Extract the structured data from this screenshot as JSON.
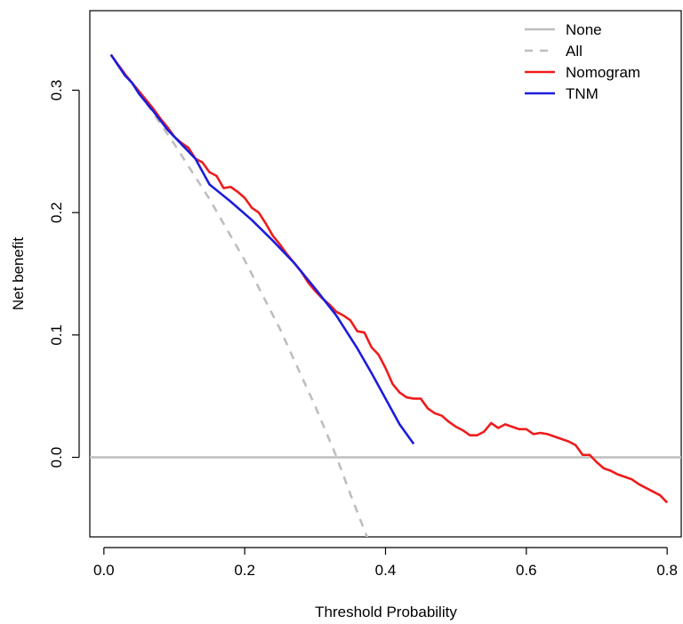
{
  "chart_data": {
    "type": "line",
    "title": "",
    "xlabel": "Threshold Probability",
    "ylabel": "Net benefit",
    "xlim": [
      -0.02,
      0.82
    ],
    "ylim": [
      -0.065,
      0.365
    ],
    "xticks": [
      0.0,
      0.2,
      0.4,
      0.6,
      0.8
    ],
    "xtick_labels": [
      "0.0",
      "0.2",
      "0.4",
      "0.6",
      "0.8"
    ],
    "yticks": [
      0.0,
      0.1,
      0.2,
      0.3
    ],
    "ytick_labels": [
      "0.0",
      "0.1",
      "0.2",
      "0.3"
    ],
    "grid": false,
    "legend_position": "top-right",
    "series": [
      {
        "name": "None",
        "color": "#bebebe",
        "dash": "solid",
        "x": [
          -0.02,
          0.82
        ],
        "y": [
          0.0,
          0.0
        ]
      },
      {
        "name": "All",
        "color": "#bebebe",
        "dash": "dashed",
        "x": [
          0.01,
          0.05,
          0.1,
          0.15,
          0.2,
          0.25,
          0.3,
          0.33,
          0.35,
          0.375
        ],
        "y": [
          0.329,
          0.298,
          0.256,
          0.211,
          0.161,
          0.105,
          0.042,
          0.001,
          -0.03,
          -0.067
        ]
      },
      {
        "name": "Nomogram",
        "color": "#ee1c1c",
        "dash": "solid",
        "x": [
          0.01,
          0.02,
          0.03,
          0.04,
          0.05,
          0.06,
          0.07,
          0.08,
          0.09,
          0.1,
          0.11,
          0.12,
          0.13,
          0.14,
          0.15,
          0.16,
          0.17,
          0.18,
          0.19,
          0.2,
          0.21,
          0.22,
          0.23,
          0.24,
          0.25,
          0.26,
          0.27,
          0.28,
          0.29,
          0.3,
          0.31,
          0.32,
          0.33,
          0.34,
          0.35,
          0.36,
          0.37,
          0.38,
          0.39,
          0.4,
          0.41,
          0.42,
          0.43,
          0.44,
          0.45,
          0.46,
          0.47,
          0.48,
          0.49,
          0.5,
          0.51,
          0.52,
          0.53,
          0.54,
          0.55,
          0.56,
          0.57,
          0.58,
          0.59,
          0.6,
          0.61,
          0.62,
          0.63,
          0.64,
          0.65,
          0.66,
          0.67,
          0.68,
          0.69,
          0.7,
          0.71,
          0.72,
          0.73,
          0.74,
          0.75,
          0.76,
          0.77,
          0.78,
          0.79,
          0.8
        ],
        "y": [
          0.329,
          0.321,
          0.313,
          0.306,
          0.299,
          0.292,
          0.285,
          0.277,
          0.27,
          0.262,
          0.257,
          0.253,
          0.244,
          0.241,
          0.233,
          0.23,
          0.22,
          0.221,
          0.217,
          0.212,
          0.204,
          0.2,
          0.191,
          0.181,
          0.174,
          0.166,
          0.159,
          0.152,
          0.143,
          0.136,
          0.13,
          0.125,
          0.119,
          0.116,
          0.112,
          0.103,
          0.102,
          0.09,
          0.084,
          0.073,
          0.06,
          0.053,
          0.049,
          0.048,
          0.048,
          0.04,
          0.036,
          0.034,
          0.029,
          0.025,
          0.022,
          0.018,
          0.018,
          0.021,
          0.028,
          0.024,
          0.027,
          0.025,
          0.023,
          0.023,
          0.019,
          0.02,
          0.019,
          0.017,
          0.015,
          0.013,
          0.01,
          0.002,
          0.002,
          -0.004,
          -0.009,
          -0.011,
          -0.014,
          -0.016,
          -0.018,
          -0.022,
          -0.025,
          -0.028,
          -0.031,
          -0.037
        ]
      },
      {
        "name": "TNM",
        "color": "#1c1cdc",
        "dash": "solid",
        "x": [
          0.01,
          0.03,
          0.04,
          0.05,
          0.07,
          0.09,
          0.11,
          0.13,
          0.15,
          0.18,
          0.21,
          0.24,
          0.27,
          0.3,
          0.33,
          0.36,
          0.38,
          0.4,
          0.42,
          0.44
        ],
        "y": [
          0.329,
          0.312,
          0.306,
          0.297,
          0.283,
          0.268,
          0.256,
          0.244,
          0.223,
          0.209,
          0.194,
          0.177,
          0.159,
          0.138,
          0.116,
          0.089,
          0.069,
          0.048,
          0.027,
          0.011
        ]
      }
    ]
  }
}
